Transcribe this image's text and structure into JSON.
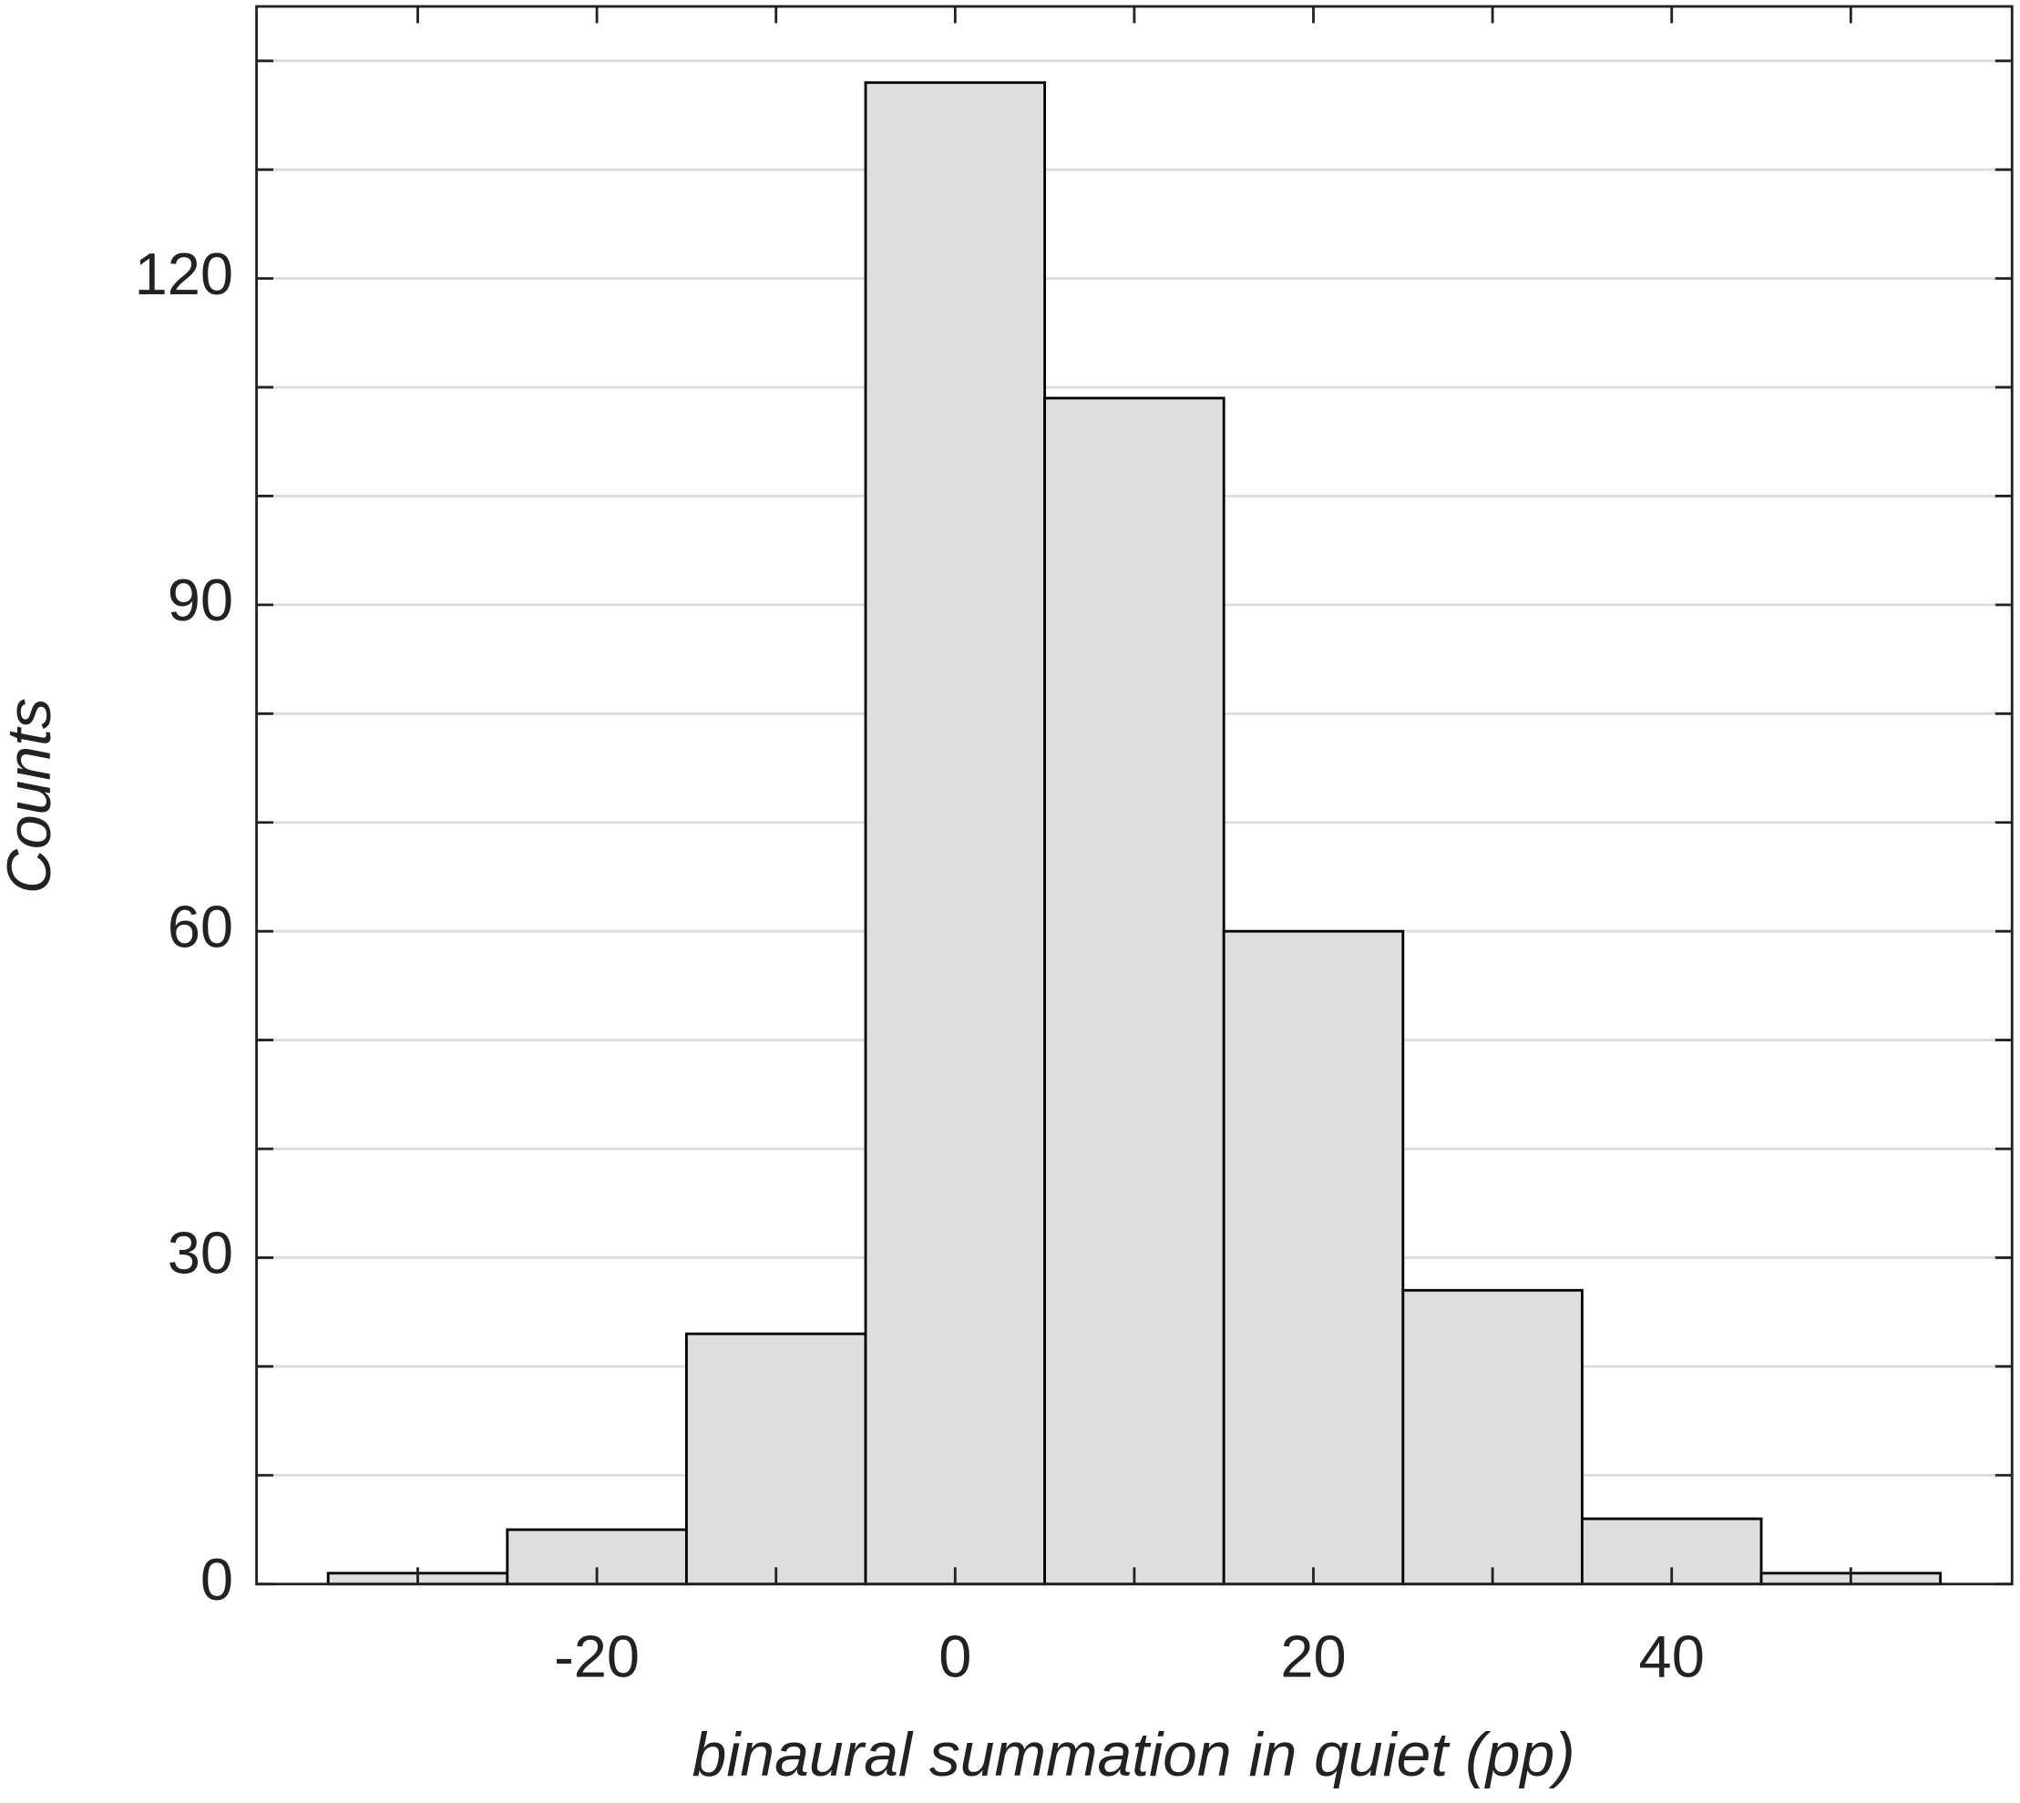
{
  "chart_data": {
    "type": "histogram",
    "xlabel": "binaural summation in quiet (pp)",
    "ylabel": "Counts",
    "bins": [
      -35,
      -25,
      -15,
      -5,
      5,
      15,
      25,
      35,
      45,
      55
    ],
    "values": [
      1,
      5,
      23,
      138,
      109,
      60,
      27,
      6,
      1
    ],
    "color": "#dedede",
    "edgecolor": "#000000",
    "xlim": [
      -39,
      59
    ],
    "ylim": [
      0,
      145
    ],
    "xticks": [
      -20,
      0,
      20,
      40
    ],
    "xminor_ticks": [
      -30,
      -10,
      10,
      30,
      50
    ],
    "yticks": [
      0,
      30,
      60,
      90,
      120
    ],
    "yminor_ticks": [
      10,
      20,
      40,
      50,
      70,
      80,
      100,
      110,
      130,
      140
    ],
    "grid": true
  }
}
